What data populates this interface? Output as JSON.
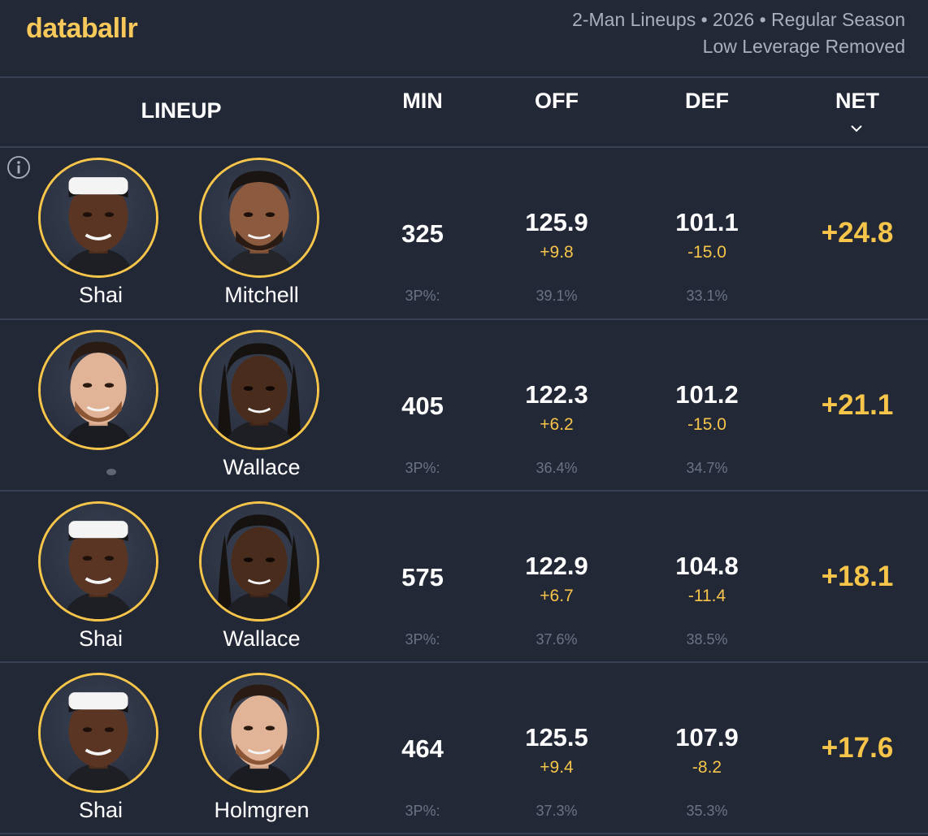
{
  "brand": {
    "logo": "databallr"
  },
  "subtitle": {
    "line1": "2-Man Lineups • 2026 • Regular Season",
    "line2": "Low Leverage Removed"
  },
  "columns": {
    "lineup": "LINEUP",
    "min": "MIN",
    "off": "OFF",
    "def": "DEF",
    "net": "NET"
  },
  "sort_icon": "chevron-down-icon",
  "colors": {
    "accent": "#f6c54a",
    "logo": "#f6c95a",
    "background": "#222836",
    "divider": "#384154"
  },
  "rows": [
    {
      "p1": "Shai",
      "p2": "Mitchell",
      "min": "325",
      "off": "125.9",
      "off_delta": "+9.8",
      "def": "101.1",
      "def_delta": "-15.0",
      "net": "+24.8",
      "tp_label": "3P%:",
      "off_3p": "39.1%",
      "def_3p": "33.1%"
    },
    {
      "p1": "",
      "p2": "Wallace",
      "min": "405",
      "off": "122.3",
      "off_delta": "+6.2",
      "def": "101.2",
      "def_delta": "-15.0",
      "net": "+21.1",
      "tp_label": "3P%:",
      "off_3p": "36.4%",
      "def_3p": "34.7%"
    },
    {
      "p1": "Shai",
      "p2": "Wallace",
      "min": "575",
      "off": "122.9",
      "off_delta": "+6.7",
      "def": "104.8",
      "def_delta": "-11.4",
      "net": "+18.1",
      "tp_label": "3P%:",
      "off_3p": "37.6%",
      "def_3p": "38.5%"
    },
    {
      "p1": "Shai",
      "p2": "Holmgren",
      "min": "464",
      "off": "125.5",
      "off_delta": "+9.4",
      "def": "107.9",
      "def_delta": "-8.2",
      "net": "+17.6",
      "tp_label": "3P%:",
      "off_3p": "37.3%",
      "def_3p": "35.3%"
    }
  ]
}
